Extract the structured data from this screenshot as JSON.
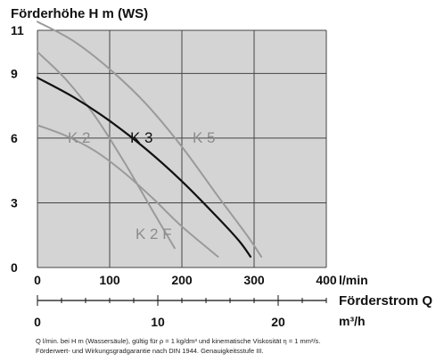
{
  "chart_data": {
    "type": "line",
    "title": "Förderhöhe H m (WS)",
    "y_axis": {
      "label": "Förderhöhe H m (WS)",
      "range": [
        0,
        11
      ],
      "ticks": [
        "0",
        "3",
        "6",
        "9",
        "11"
      ]
    },
    "x_axis": {
      "label": "Förderstrom Q",
      "unit": "l/min",
      "range": [
        0,
        400
      ],
      "ticks": [
        "0",
        "100",
        "200",
        "300",
        "400"
      ]
    },
    "x_axis_secondary": {
      "unit": "m³/h",
      "range": [
        0,
        24
      ],
      "ticks": [
        "0",
        "10",
        "20"
      ]
    },
    "grid": true,
    "plot_background": "#d4d4d4",
    "series": [
      {
        "name": "K 2",
        "color": "#9a9a9a",
        "x": [
          0,
          40,
          80,
          120,
          160,
          200,
          250
        ],
        "y": [
          6.6,
          6.1,
          5.4,
          4.4,
          3.2,
          1.9,
          0.5
        ]
      },
      {
        "name": "K 2 F",
        "color": "#9a9a9a",
        "x": [
          0,
          40,
          80,
          120,
          160,
          190
        ],
        "y": [
          10.0,
          8.7,
          7.0,
          4.9,
          2.6,
          0.9
        ]
      },
      {
        "name": "K 3",
        "color": "#111111",
        "x": [
          0,
          50,
          100,
          150,
          200,
          250,
          280,
          295
        ],
        "y": [
          8.8,
          7.9,
          6.8,
          5.5,
          4.0,
          2.3,
          1.2,
          0.5
        ]
      },
      {
        "name": "K 5",
        "color": "#9a9a9a",
        "x": [
          0,
          50,
          100,
          150,
          200,
          250,
          290,
          310
        ],
        "y": [
          11.4,
          10.5,
          9.2,
          7.6,
          5.6,
          3.3,
          1.5,
          0.5
        ]
      }
    ]
  },
  "footnote": {
    "line1": "Q l/min. bei H m (Wassersäule), gültig für ρ = 1 kg/dm³ und kinematische Viskosität η = 1 mm²/s.",
    "line2": "Förderwert- und Wirkungsgradgarantie nach DIN 1944. Genauigkeitsstufe III."
  }
}
